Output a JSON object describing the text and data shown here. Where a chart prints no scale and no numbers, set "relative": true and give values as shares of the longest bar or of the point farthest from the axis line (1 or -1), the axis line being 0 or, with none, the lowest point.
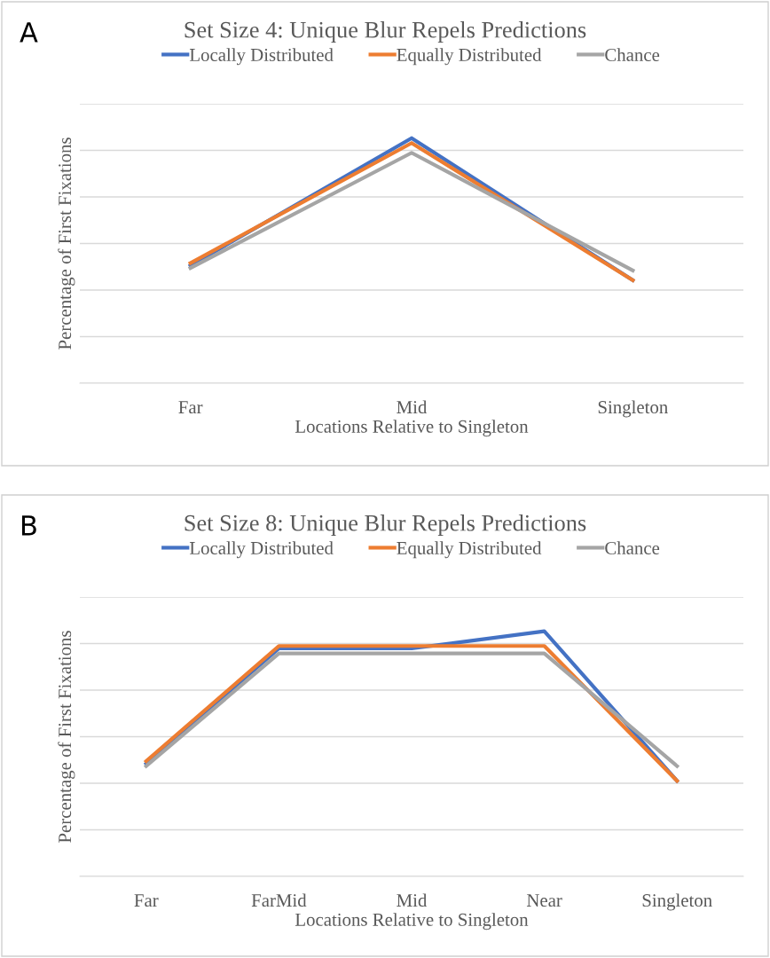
{
  "chart_data": [
    {
      "type": "line",
      "title": "Set Size 4: Unique Blur Repels Predictions",
      "xlabel": "Locations Relative to Singleton",
      "ylabel": "Percentage of First Fixations",
      "annotations": [
        "A"
      ],
      "relative": true,
      "grid": "y",
      "legend": "top",
      "categories": [
        "Far",
        "Mid",
        "Singleton"
      ],
      "series": [
        {
          "name": "Locally Distributed",
          "color": "#4472c4",
          "values": [
            0.48,
            1,
            0.42
          ]
        },
        {
          "name": "Equally Distributed",
          "color": "#ed7d31",
          "values": [
            0.49,
            0.98,
            0.42
          ]
        },
        {
          "name": "Chance",
          "color": "#a5a5a5",
          "values": [
            0.47,
            0.94,
            0.46
          ]
        }
      ]
    },
    {
      "type": "line",
      "title": "Set Size 8: Unique Blur Repels Predictions",
      "xlabel": "Locations Relative to Singleton",
      "ylabel": "Percentage of First Fixations",
      "annotations": [
        "B"
      ],
      "relative": true,
      "grid": "y",
      "legend": "top",
      "categories": [
        "Far",
        "FarMid",
        "Mid",
        "Near",
        "Singleton"
      ],
      "series": [
        {
          "name": "Locally Distributed",
          "color": "#4472c4",
          "values": [
            0.46,
            0.93,
            0.93,
            1,
            0.39
          ]
        },
        {
          "name": "Equally Distributed",
          "color": "#ed7d31",
          "values": [
            0.47,
            0.94,
            0.94,
            0.94,
            0.39
          ]
        },
        {
          "name": "Chance",
          "color": "#a5a5a5",
          "values": [
            0.45,
            0.91,
            0.91,
            0.91,
            0.45
          ]
        }
      ]
    }
  ]
}
